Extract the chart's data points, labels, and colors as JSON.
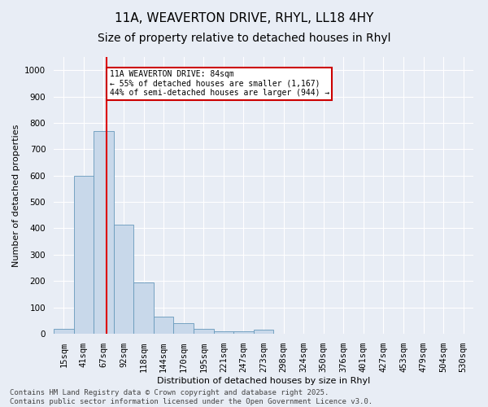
{
  "title_line1": "11A, WEAVERTON DRIVE, RHYL, LL18 4HY",
  "title_line2": "Size of property relative to detached houses in Rhyl",
  "xlabel": "Distribution of detached houses by size in Rhyl",
  "ylabel": "Number of detached properties",
  "bin_labels": [
    "15sqm",
    "41sqm",
    "67sqm",
    "92sqm",
    "118sqm",
    "144sqm",
    "170sqm",
    "195sqm",
    "221sqm",
    "247sqm",
    "273sqm",
    "298sqm",
    "324sqm",
    "350sqm",
    "376sqm",
    "401sqm",
    "427sqm",
    "453sqm",
    "479sqm",
    "504sqm",
    "530sqm"
  ],
  "bar_values": [
    20,
    600,
    770,
    415,
    195,
    65,
    40,
    20,
    10,
    10,
    15,
    0,
    0,
    0,
    0,
    0,
    0,
    0,
    0,
    0,
    0
  ],
  "bar_color": "#c8d8ea",
  "bar_edge_color": "#6699bb",
  "property_line_x": 2.65,
  "annotation_text": "11A WEAVERTON DRIVE: 84sqm\n← 55% of detached houses are smaller (1,167)\n44% of semi-detached houses are larger (944) →",
  "annotation_box_color": "#ffffff",
  "annotation_box_edge": "#cc0000",
  "red_line_color": "#dd0000",
  "ylim": [
    0,
    1050
  ],
  "yticks": [
    0,
    100,
    200,
    300,
    400,
    500,
    600,
    700,
    800,
    900,
    1000
  ],
  "footer_text": "Contains HM Land Registry data © Crown copyright and database right 2025.\nContains public sector information licensed under the Open Government Licence v3.0.",
  "figure_bg_color": "#e8edf5",
  "plot_bg_color": "#e8edf5",
  "grid_color": "#ffffff",
  "title_fontsize": 11,
  "label_fontsize": 8,
  "tick_fontsize": 7.5,
  "footer_fontsize": 6.5
}
